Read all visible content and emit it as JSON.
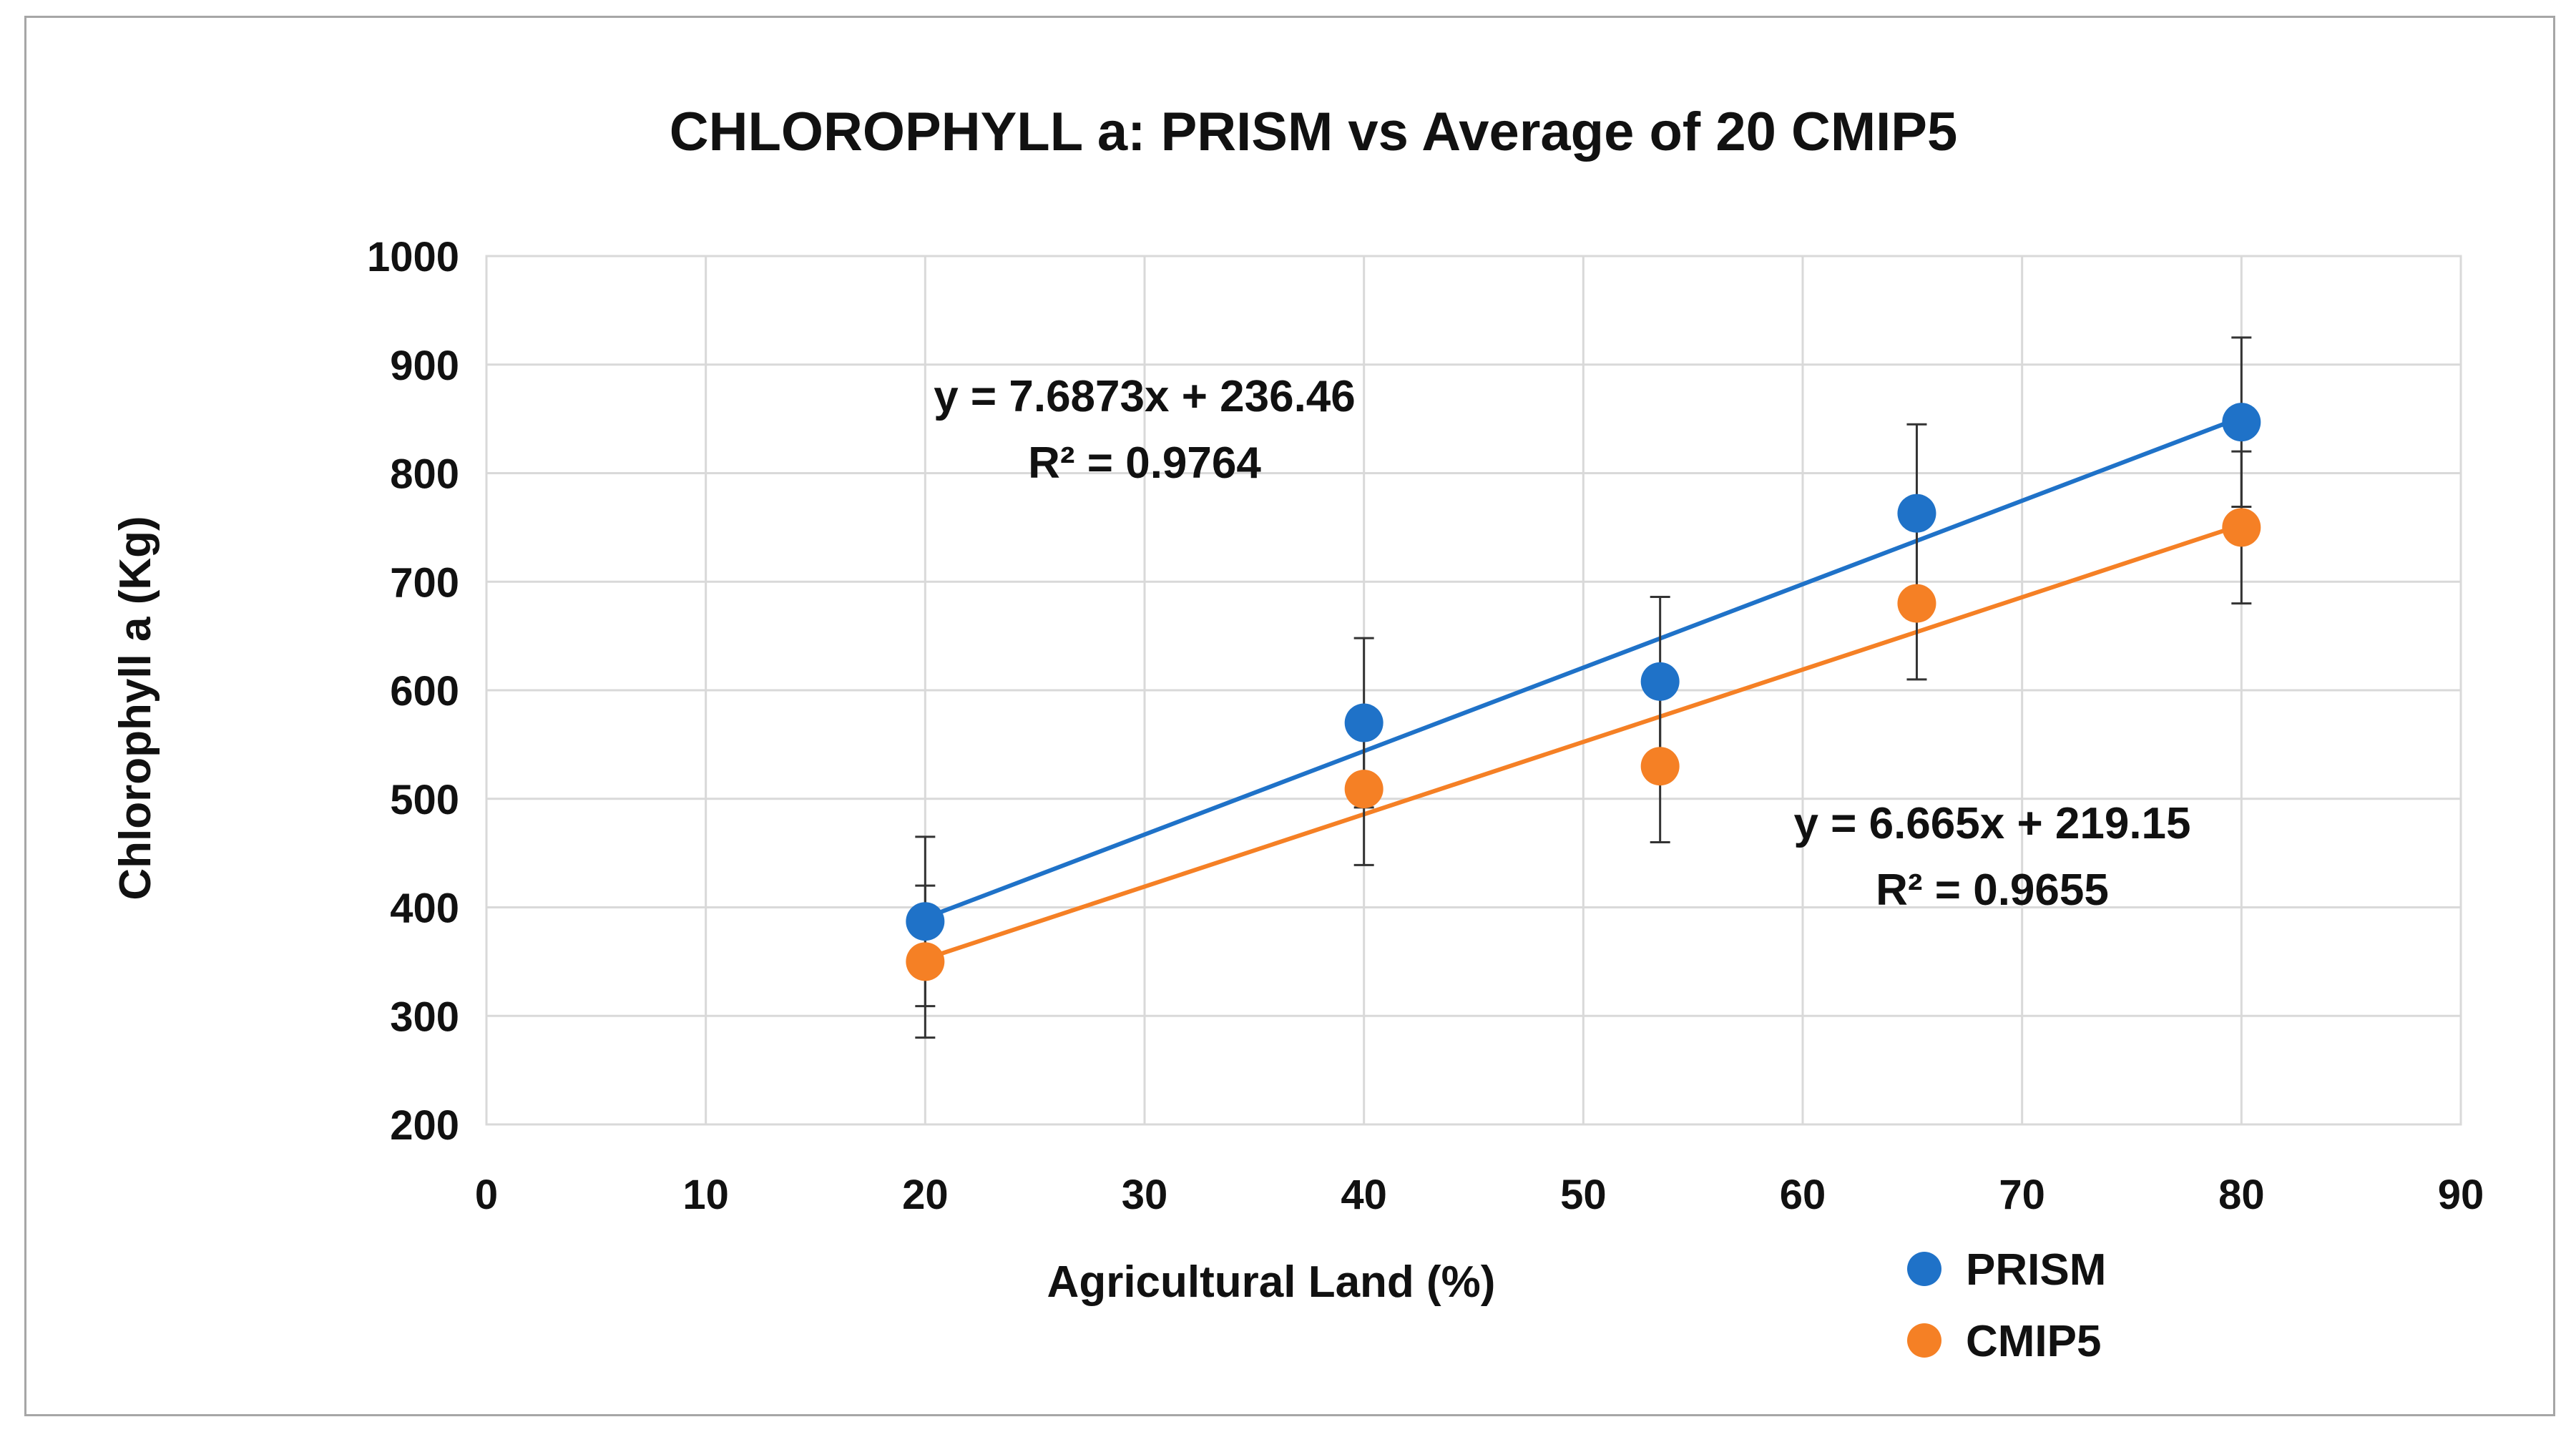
{
  "chart_data": {
    "type": "scatter",
    "title": "CHLOROPHYLL a: PRISM vs Average of 20 CMIP5",
    "xlabel": "Agricultural Land (%)",
    "ylabel": "Chlorophyll a (Kg)",
    "xlim": [
      0,
      90
    ],
    "ylim": [
      200,
      1000
    ],
    "xticks": [
      0,
      10,
      20,
      30,
      40,
      50,
      60,
      70,
      80,
      90
    ],
    "yticks": [
      200,
      300,
      400,
      500,
      600,
      700,
      800,
      900,
      1000
    ],
    "grid": true,
    "legend_position": "bottom-right",
    "series": [
      {
        "name": "PRISM",
        "color": "#1f72c8",
        "x": [
          20,
          40,
          53.5,
          65.2,
          80
        ],
        "y": [
          387,
          570,
          608,
          763,
          847
        ],
        "error_plus": [
          78,
          78,
          78,
          82,
          78
        ],
        "error_minus": [
          78,
          78,
          78,
          82,
          78
        ],
        "trendline": {
          "slope": 7.6873,
          "intercept": 236.46,
          "x_range": [
            20,
            80
          ]
        },
        "equation": "y = 7.6873x + 236.46",
        "r_squared": "R² = 0.9764"
      },
      {
        "name": "CMIP5",
        "color": "#f58025",
        "x": [
          20,
          40,
          53.5,
          65.2,
          80
        ],
        "y": [
          350,
          509,
          530,
          680,
          750
        ],
        "error_plus": [
          70,
          70,
          70,
          70,
          70
        ],
        "error_minus": [
          70,
          70,
          70,
          70,
          70
        ],
        "trendline": {
          "slope": 6.665,
          "intercept": 219.15,
          "x_range": [
            20,
            80
          ]
        },
        "equation": "y = 6.665x + 219.15",
        "r_squared": "R² = 0.9655"
      }
    ]
  }
}
